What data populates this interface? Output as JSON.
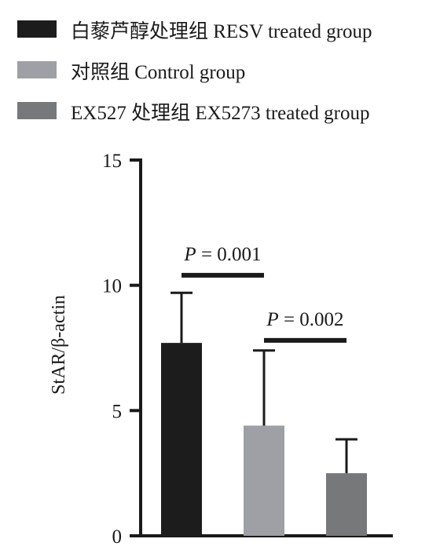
{
  "legend": [
    {
      "label": "白藜芦醇处理组 RESV treated group",
      "color": "#1c1c1c"
    },
    {
      "label": "对照组 Control group",
      "color": "#9ea0a6"
    },
    {
      "label": "EX527 处理组 EX5273 treated group",
      "color": "#77787a"
    }
  ],
  "chart_data": {
    "type": "bar",
    "categories": [
      "白藜芦醇处理组 RESV treated group",
      "对照组 Control group",
      "EX527 处理组 EX5273 treated group"
    ],
    "values": [
      7.7,
      4.4,
      2.5
    ],
    "errors": [
      2.0,
      3.0,
      1.35
    ],
    "colors": [
      "#1c1c1c",
      "#9ea0a6",
      "#77787a"
    ],
    "ylabel": "StAR/β-actin",
    "ylim": [
      0,
      15
    ],
    "yticks": [
      0,
      5,
      10,
      15
    ],
    "grid": false,
    "legend_position": "top",
    "annotations": [
      {
        "p_label": "P",
        "text": " = 0.001",
        "between": [
          0,
          1
        ],
        "y": 10.4
      },
      {
        "p_label": "P",
        "text": " = 0.002",
        "between": [
          1,
          2
        ],
        "y": 7.8
      }
    ]
  }
}
